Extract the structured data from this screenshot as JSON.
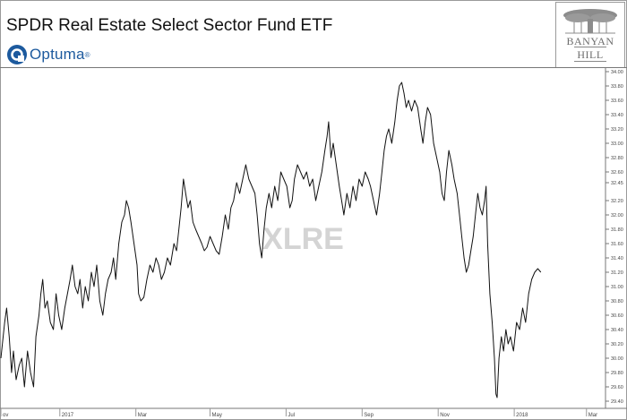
{
  "header": {
    "title": "SPDR Real Estate Select Sector Fund ETF",
    "optuma_name": "Optuma",
    "optuma_reg": "®",
    "logo_line1": "BANYAN",
    "logo_line2": "HILL"
  },
  "colors": {
    "line": "#111111",
    "optuma_blue": "#1d5a9e",
    "watermark": "#d4d4d4",
    "logo_gray": "#8c8c8c"
  },
  "chart_data": {
    "type": "line",
    "title": "SPDR Real Estate Select Sector Fund ETF",
    "watermark": "XLRE",
    "ylim": [
      29.3,
      34.05
    ],
    "y_ticks": [
      "34.00",
      "33.80",
      "33.60",
      "33.40",
      "33.20",
      "33.00",
      "32.80",
      "32.60",
      "32.45",
      "32.20",
      "32.00",
      "31.80",
      "31.60",
      "31.40",
      "31.20",
      "31.00",
      "30.80",
      "30.60",
      "30.40",
      "30.20",
      "30.00",
      "29.80",
      "29.60",
      "29.40"
    ],
    "y_tick_values": [
      34.0,
      33.8,
      33.6,
      33.4,
      33.2,
      33.0,
      32.8,
      32.6,
      32.45,
      32.2,
      32.0,
      31.8,
      31.6,
      31.4,
      31.2,
      31.0,
      30.8,
      30.6,
      30.4,
      30.2,
      30.0,
      29.8,
      29.6,
      29.4
    ],
    "x_ticks": [
      "ov",
      "2017",
      "Mar",
      "May",
      "Jul",
      "Sep",
      "Nov",
      "2018",
      "Mar"
    ],
    "x_tick_values": [
      0,
      1.55,
      3.55,
      5.5,
      7.5,
      9.5,
      11.5,
      13.5,
      15.4
    ],
    "xlim": [
      0,
      15.9
    ],
    "grid": false,
    "series": [
      {
        "values": [
          [
            0.0,
            30.0
          ],
          [
            0.1,
            30.5
          ],
          [
            0.15,
            30.7
          ],
          [
            0.22,
            30.3
          ],
          [
            0.28,
            29.8
          ],
          [
            0.33,
            30.1
          ],
          [
            0.4,
            29.7
          ],
          [
            0.48,
            29.9
          ],
          [
            0.55,
            30.0
          ],
          [
            0.62,
            29.6
          ],
          [
            0.7,
            30.1
          ],
          [
            0.78,
            29.8
          ],
          [
            0.86,
            29.6
          ],
          [
            0.92,
            30.3
          ],
          [
            1.0,
            30.6
          ],
          [
            1.05,
            30.9
          ],
          [
            1.1,
            31.1
          ],
          [
            1.16,
            30.7
          ],
          [
            1.22,
            30.8
          ],
          [
            1.3,
            30.5
          ],
          [
            1.38,
            30.4
          ],
          [
            1.45,
            30.9
          ],
          [
            1.52,
            30.6
          ],
          [
            1.6,
            30.4
          ],
          [
            1.68,
            30.7
          ],
          [
            1.75,
            30.9
          ],
          [
            1.82,
            31.1
          ],
          [
            1.88,
            31.3
          ],
          [
            1.95,
            31.0
          ],
          [
            2.02,
            30.9
          ],
          [
            2.08,
            31.1
          ],
          [
            2.15,
            30.7
          ],
          [
            2.22,
            31.0
          ],
          [
            2.3,
            30.8
          ],
          [
            2.38,
            31.2
          ],
          [
            2.45,
            31.0
          ],
          [
            2.52,
            31.3
          ],
          [
            2.6,
            30.8
          ],
          [
            2.68,
            30.6
          ],
          [
            2.75,
            30.9
          ],
          [
            2.82,
            31.1
          ],
          [
            2.9,
            31.2
          ],
          [
            2.96,
            31.4
          ],
          [
            3.02,
            31.1
          ],
          [
            3.1,
            31.6
          ],
          [
            3.18,
            31.9
          ],
          [
            3.25,
            32.0
          ],
          [
            3.3,
            32.2
          ],
          [
            3.36,
            32.1
          ],
          [
            3.42,
            31.9
          ],
          [
            3.5,
            31.6
          ],
          [
            3.58,
            31.3
          ],
          [
            3.62,
            30.9
          ],
          [
            3.68,
            30.8
          ],
          [
            3.76,
            30.85
          ],
          [
            3.84,
            31.1
          ],
          [
            3.92,
            31.3
          ],
          [
            4.0,
            31.2
          ],
          [
            4.08,
            31.4
          ],
          [
            4.15,
            31.3
          ],
          [
            4.22,
            31.1
          ],
          [
            4.3,
            31.2
          ],
          [
            4.38,
            31.4
          ],
          [
            4.46,
            31.3
          ],
          [
            4.55,
            31.6
          ],
          [
            4.62,
            31.5
          ],
          [
            4.68,
            31.8
          ],
          [
            4.74,
            32.1
          ],
          [
            4.8,
            32.5
          ],
          [
            4.86,
            32.3
          ],
          [
            4.92,
            32.1
          ],
          [
            4.98,
            32.2
          ],
          [
            5.05,
            31.9
          ],
          [
            5.12,
            31.8
          ],
          [
            5.2,
            31.7
          ],
          [
            5.28,
            31.6
          ],
          [
            5.35,
            31.5
          ],
          [
            5.42,
            31.55
          ],
          [
            5.5,
            31.7
          ],
          [
            5.58,
            31.6
          ],
          [
            5.66,
            31.5
          ],
          [
            5.74,
            31.45
          ],
          [
            5.82,
            31.7
          ],
          [
            5.9,
            32.0
          ],
          [
            5.98,
            31.8
          ],
          [
            6.05,
            32.1
          ],
          [
            6.12,
            32.2
          ],
          [
            6.2,
            32.45
          ],
          [
            6.28,
            32.3
          ],
          [
            6.36,
            32.5
          ],
          [
            6.44,
            32.7
          ],
          [
            6.52,
            32.5
          ],
          [
            6.6,
            32.4
          ],
          [
            6.68,
            32.3
          ],
          [
            6.74,
            32.0
          ],
          [
            6.8,
            31.6
          ],
          [
            6.86,
            31.4
          ],
          [
            6.92,
            31.8
          ],
          [
            6.98,
            32.1
          ],
          [
            7.05,
            32.3
          ],
          [
            7.12,
            32.1
          ],
          [
            7.2,
            32.4
          ],
          [
            7.28,
            32.2
          ],
          [
            7.36,
            32.6
          ],
          [
            7.44,
            32.5
          ],
          [
            7.52,
            32.4
          ],
          [
            7.6,
            32.1
          ],
          [
            7.66,
            32.2
          ],
          [
            7.72,
            32.5
          ],
          [
            7.8,
            32.7
          ],
          [
            7.88,
            32.6
          ],
          [
            7.96,
            32.5
          ],
          [
            8.04,
            32.6
          ],
          [
            8.12,
            32.4
          ],
          [
            8.2,
            32.5
          ],
          [
            8.28,
            32.2
          ],
          [
            8.36,
            32.4
          ],
          [
            8.44,
            32.6
          ],
          [
            8.52,
            32.9
          ],
          [
            8.58,
            33.1
          ],
          [
            8.62,
            33.3
          ],
          [
            8.68,
            32.8
          ],
          [
            8.74,
            33.0
          ],
          [
            8.82,
            32.7
          ],
          [
            8.9,
            32.4
          ],
          [
            8.96,
            32.2
          ],
          [
            9.02,
            32.0
          ],
          [
            9.1,
            32.3
          ],
          [
            9.18,
            32.1
          ],
          [
            9.26,
            32.4
          ],
          [
            9.34,
            32.2
          ],
          [
            9.42,
            32.5
          ],
          [
            9.5,
            32.4
          ],
          [
            9.58,
            32.6
          ],
          [
            9.66,
            32.5
          ],
          [
            9.72,
            32.4
          ],
          [
            9.8,
            32.2
          ],
          [
            9.88,
            32.0
          ],
          [
            9.96,
            32.3
          ],
          [
            10.02,
            32.6
          ],
          [
            10.08,
            32.9
          ],
          [
            10.14,
            33.1
          ],
          [
            10.2,
            33.2
          ],
          [
            10.28,
            33.0
          ],
          [
            10.36,
            33.3
          ],
          [
            10.42,
            33.6
          ],
          [
            10.48,
            33.8
          ],
          [
            10.54,
            33.85
          ],
          [
            10.6,
            33.7
          ],
          [
            10.66,
            33.5
          ],
          [
            10.72,
            33.6
          ],
          [
            10.8,
            33.45
          ],
          [
            10.88,
            33.6
          ],
          [
            10.96,
            33.5
          ],
          [
            11.04,
            33.2
          ],
          [
            11.1,
            33.0
          ],
          [
            11.16,
            33.3
          ],
          [
            11.22,
            33.5
          ],
          [
            11.3,
            33.4
          ],
          [
            11.38,
            33.0
          ],
          [
            11.46,
            32.8
          ],
          [
            11.54,
            32.6
          ],
          [
            11.6,
            32.3
          ],
          [
            11.66,
            32.2
          ],
          [
            11.72,
            32.6
          ],
          [
            11.78,
            32.9
          ],
          [
            11.86,
            32.7
          ],
          [
            11.92,
            32.5
          ],
          [
            12.0,
            32.3
          ],
          [
            12.06,
            32.0
          ],
          [
            12.12,
            31.7
          ],
          [
            12.18,
            31.4
          ],
          [
            12.24,
            31.2
          ],
          [
            12.3,
            31.3
          ],
          [
            12.36,
            31.5
          ],
          [
            12.42,
            31.7
          ],
          [
            12.48,
            32.0
          ],
          [
            12.54,
            32.3
          ],
          [
            12.6,
            32.1
          ],
          [
            12.66,
            32.0
          ],
          [
            12.72,
            32.2
          ],
          [
            12.76,
            32.4
          ],
          [
            12.8,
            31.6
          ],
          [
            12.86,
            30.9
          ],
          [
            12.92,
            30.5
          ],
          [
            12.98,
            30.0
          ],
          [
            13.02,
            29.5
          ],
          [
            13.05,
            29.45
          ],
          [
            13.1,
            30.0
          ],
          [
            13.16,
            30.3
          ],
          [
            13.22,
            30.1
          ],
          [
            13.28,
            30.4
          ],
          [
            13.34,
            30.2
          ],
          [
            13.4,
            30.3
          ],
          [
            13.48,
            30.1
          ],
          [
            13.56,
            30.5
          ],
          [
            13.64,
            30.4
          ],
          [
            13.72,
            30.7
          ],
          [
            13.8,
            30.5
          ],
          [
            13.88,
            30.9
          ],
          [
            13.96,
            31.1
          ],
          [
            14.04,
            31.2
          ],
          [
            14.12,
            31.25
          ],
          [
            14.2,
            31.2
          ]
        ]
      }
    ]
  }
}
